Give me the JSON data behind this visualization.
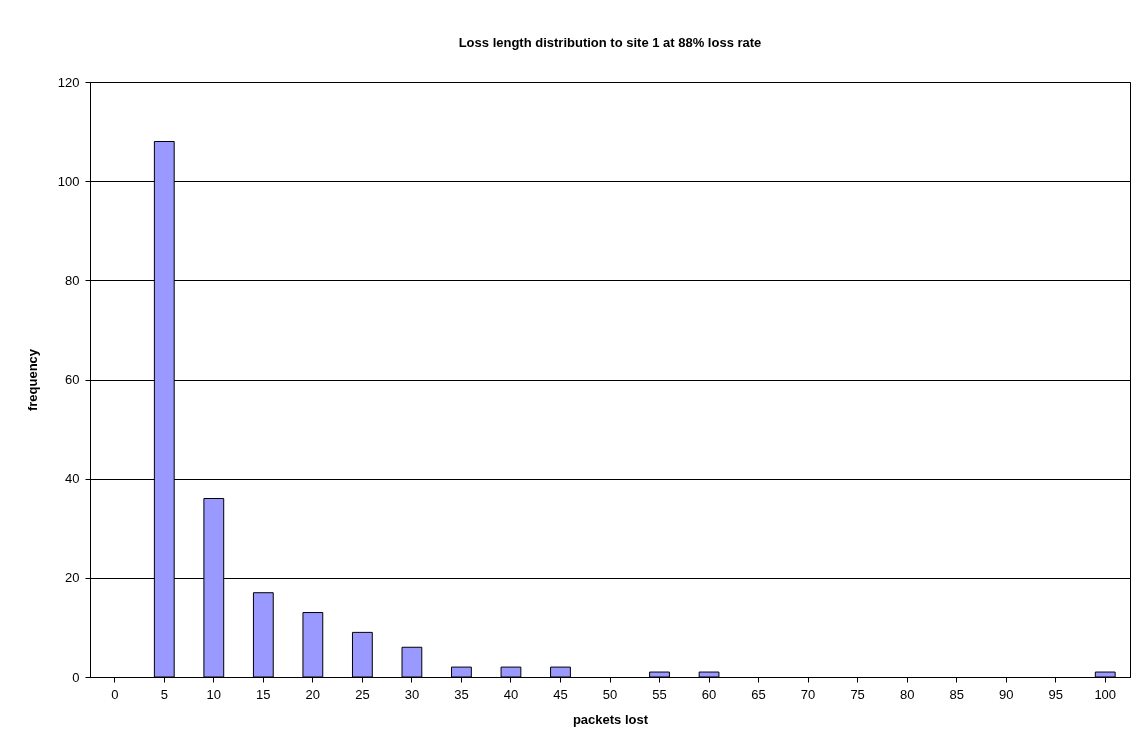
{
  "chart_data": {
    "type": "bar",
    "title": "Loss length distribution to site 1 at 88% loss rate",
    "xlabel": "packets lost",
    "ylabel": "frequency",
    "categories": [
      "0",
      "5",
      "10",
      "15",
      "20",
      "25",
      "30",
      "35",
      "40",
      "45",
      "50",
      "55",
      "60",
      "65",
      "70",
      "75",
      "80",
      "85",
      "90",
      "95",
      "100"
    ],
    "series": [
      {
        "color": "#9999ff",
        "values": [
          0,
          108,
          36,
          17,
          13,
          9,
          6,
          2,
          2,
          2,
          0,
          1,
          1,
          0,
          0,
          0,
          0,
          0,
          0,
          0,
          1
        ]
      }
    ],
    "ylim": [
      0,
      120
    ],
    "yticks": [
      0,
      20,
      40,
      60,
      80,
      100,
      120
    ],
    "grid": "y",
    "legend": false
  }
}
